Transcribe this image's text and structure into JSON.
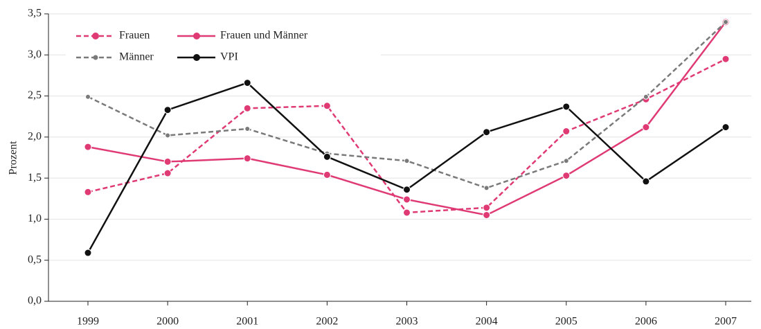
{
  "chart_data": {
    "type": "line",
    "y_label": "Prozent",
    "categories": [
      "1999",
      "2000",
      "2001",
      "2002",
      "2003",
      "2004",
      "2005",
      "2006",
      "2007"
    ],
    "series": [
      {
        "name": "Frauen",
        "color": "#df3a74",
        "dashed": true,
        "marker": "large",
        "values": [
          1.33,
          1.56,
          2.35,
          2.38,
          1.08,
          1.14,
          2.07,
          2.46,
          2.95
        ]
      },
      {
        "name": "Frauen und Männer",
        "color": "#df3a74",
        "dashed": false,
        "marker": "large",
        "values": [
          1.88,
          1.7,
          1.74,
          1.54,
          1.24,
          1.05,
          1.53,
          2.12,
          3.4
        ]
      },
      {
        "name": "Männer",
        "color": "#7a7a7a",
        "dashed": true,
        "marker": "small",
        "values": [
          2.49,
          2.02,
          2.1,
          1.8,
          1.71,
          1.38,
          1.71,
          2.49,
          3.4
        ]
      },
      {
        "name": "VPI",
        "color": "#111111",
        "dashed": false,
        "marker": "large",
        "values": [
          0.59,
          2.33,
          2.66,
          1.76,
          1.36,
          2.06,
          2.37,
          1.46,
          2.12
        ]
      }
    ],
    "ylim": [
      0,
      3.5
    ],
    "yticks": [
      {
        "value": 0,
        "label": "0,0"
      },
      {
        "value": 0.5,
        "label": "0,5"
      },
      {
        "value": 1,
        "label": "1,0"
      },
      {
        "value": 1.5,
        "label": "1,5"
      },
      {
        "value": 2,
        "label": "2,0"
      },
      {
        "value": 2.5,
        "label": "2,5"
      },
      {
        "value": 3,
        "label": "3,0"
      },
      {
        "value": 3.5,
        "label": "3,5"
      }
    ],
    "grid": true,
    "legend": "top-left"
  }
}
